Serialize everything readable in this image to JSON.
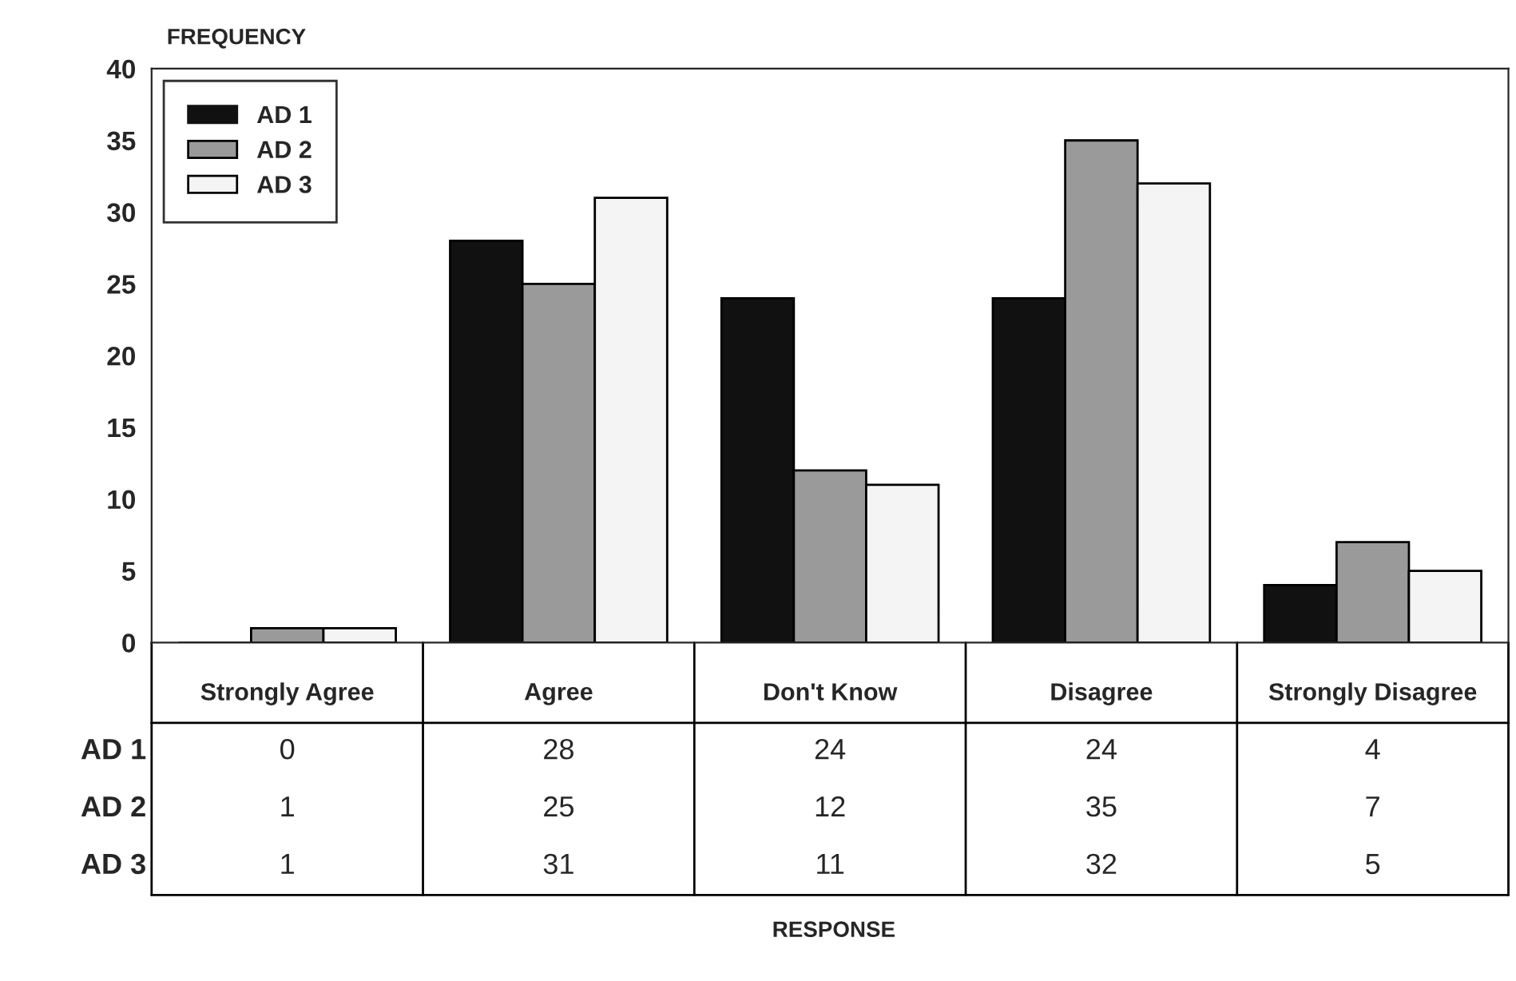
{
  "chart_data": {
    "type": "bar",
    "ylabel": "FREQUENCY",
    "annotations": [
      "RESPONSE"
    ],
    "categories": [
      "Strongly Agree",
      "Agree",
      "Don't Know",
      "Disagree",
      "Strongly Disagree"
    ],
    "series": [
      {
        "name": "AD 1",
        "color": "#111111",
        "values": [
          0,
          28,
          24,
          24,
          4
        ]
      },
      {
        "name": "AD 2",
        "color": "#9a9a9a",
        "values": [
          1,
          25,
          12,
          35,
          7
        ]
      },
      {
        "name": "AD 3",
        "color": "#f4f4f4",
        "values": [
          1,
          31,
          11,
          32,
          5
        ]
      }
    ],
    "ylim": [
      0,
      40
    ],
    "yticks": [
      0,
      5,
      10,
      15,
      20,
      25,
      30,
      35,
      40
    ],
    "grid": false,
    "legend": "top left",
    "data_labels": true
  }
}
